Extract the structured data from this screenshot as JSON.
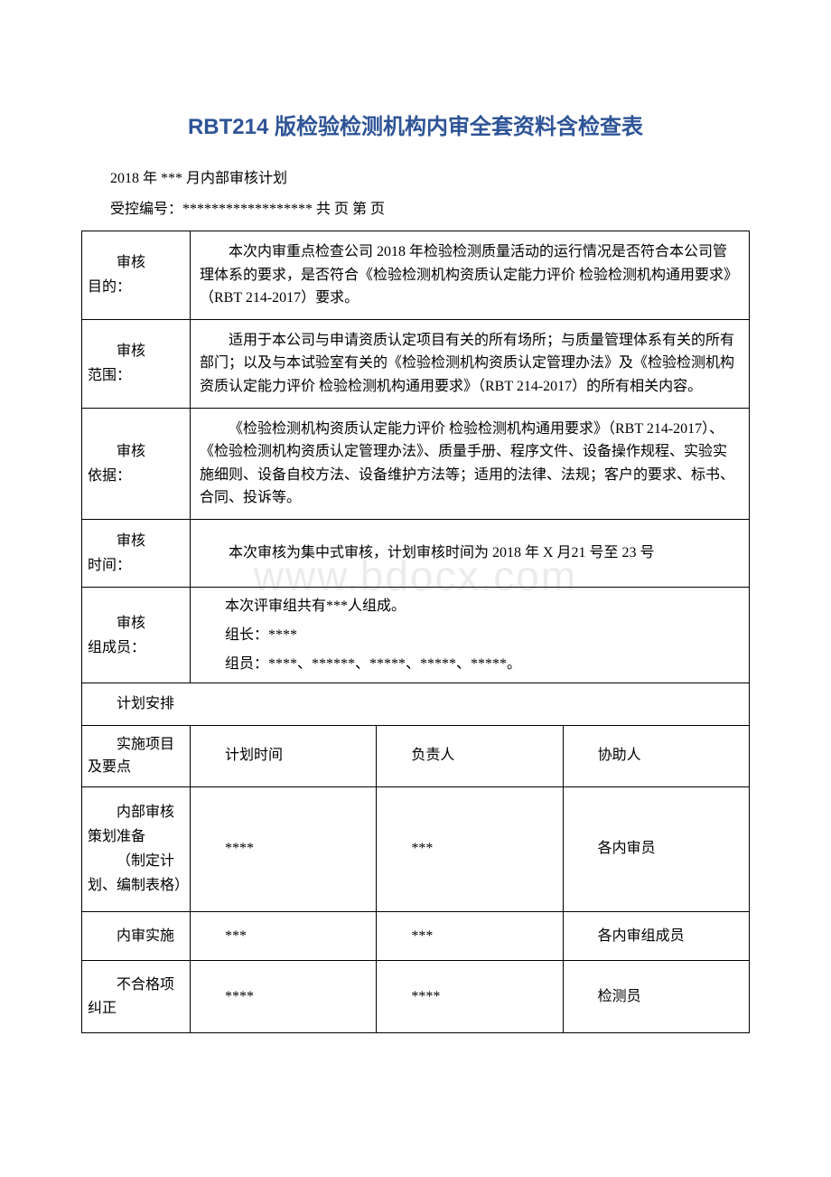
{
  "title": "RBT214 版检验检测机构内审全套资料含检查表",
  "subtitle": "2018 年 *** 月内部审核计划",
  "control_line": "受控编号：****************** 共 页 第 页",
  "watermark": "www.bdocx.com",
  "rows": {
    "purpose": {
      "label": "审核\n目的：",
      "content": "本次内审重点检查公司 2018 年检验检测质量活动的运行情况是否符合本公司管理体系的要求，是否符合《检验检测机构资质认定能力评价 检验检测机构通用要求》（RBT 214-2017）要求。"
    },
    "scope": {
      "label": "审核\n范围：",
      "content": "适用于本公司与申请资质认定项目有关的所有场所；与质量管理体系有关的所有部门；以及与本试验室有关的《检验检测机构资质认定管理办法》及《检验检测机构资质认定能力评价 检验检测机构通用要求》（RBT 214-2017）的所有相关内容。"
    },
    "basis": {
      "label": "审核\n依据：",
      "content": "《检验检测机构资质认定能力评价 检验检测机构通用要求》（RBT 214-2017）、《检验检测机构资质认定管理办法》、质量手册、程序文件、设备操作规程、实验实施细则、设备自校方法、设备维护方法等；适用的法律、法规；客户的要求、标书、合同、投诉等。"
    },
    "time": {
      "label": "审核\n时间：",
      "content": "本次审核为集中式审核，计划审核时间为 2018 年 X 月21 号至 23 号"
    },
    "team": {
      "label": "审核\n组成员：",
      "line1": "本次评审组共有***人组成。",
      "line2": "组长：****",
      "line3": "组员：****、******、*****、*****、*****。"
    },
    "plan_header": "计划安排"
  },
  "schedule": {
    "headers": {
      "item": "实施项目及要点",
      "time": "计划时间",
      "owner": "负责人",
      "assist": "协助人"
    },
    "rows": [
      {
        "item_line1": "内部审核策划准备",
        "item_line2": "（制定计划、编制表格）",
        "time": "****",
        "owner": "***",
        "assist": "各内审员"
      },
      {
        "item": "内审实施",
        "time": "***",
        "owner": "***",
        "assist": "各内审组成员"
      },
      {
        "item": "不合格项纠正",
        "time": "****",
        "owner": "****",
        "assist": "检测员"
      }
    ]
  },
  "colors": {
    "title_color": "#2e5496",
    "border_color": "#000000",
    "text_color": "#000000",
    "background": "#ffffff",
    "watermark_color": "rgba(0,0,0,0.08)"
  },
  "typography": {
    "title_fontsize": 24,
    "body_fontsize": 16,
    "watermark_fontsize": 46
  }
}
